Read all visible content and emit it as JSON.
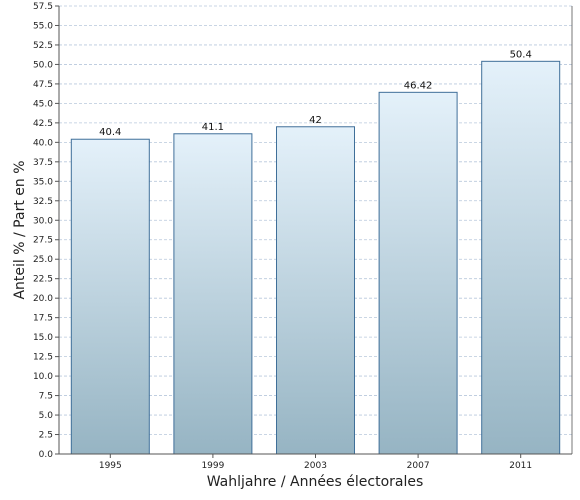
{
  "chart_data": {
    "type": "bar",
    "categories": [
      "1995",
      "1999",
      "2003",
      "2007",
      "2011"
    ],
    "values": [
      40.4,
      41.1,
      42,
      46.42,
      50.4
    ],
    "value_labels": [
      "40.4",
      "41.1",
      "42",
      "46.42",
      "50.4"
    ],
    "xlabel": "Wahljahre / Années électorales",
    "ylabel": "Anteil % / Part en %",
    "ylim": [
      0,
      57.5
    ],
    "ytick_step": 2.5,
    "yticks": [
      "0.0",
      "2.5",
      "5.0",
      "7.5",
      "10.0",
      "12.5",
      "15.0",
      "17.5",
      "20.0",
      "22.5",
      "25.0",
      "27.5",
      "30.0",
      "32.5",
      "35.0",
      "37.5",
      "40.0",
      "42.5",
      "45.0",
      "47.5",
      "50.0",
      "52.5",
      "55.0",
      "57.5"
    ],
    "grid": true,
    "legend": "none",
    "colors": {
      "bar_top": "#e4f1fa",
      "bar_bottom": "#96b4c3",
      "bar_stroke": "#3f6f99",
      "grid": "#b8c8dc",
      "axis": "#555555"
    }
  }
}
